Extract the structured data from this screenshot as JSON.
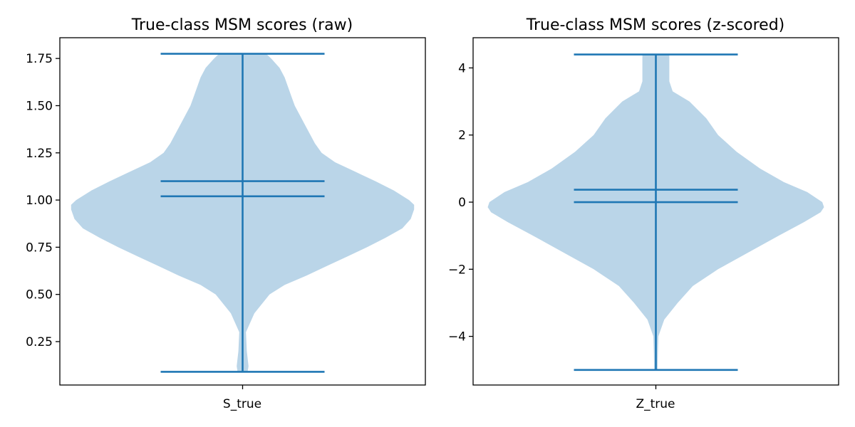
{
  "figure": {
    "background": "#ffffff",
    "violin_fill": "#bad5e8",
    "line_color": "#1f77b4"
  },
  "chart_data": [
    {
      "type": "violin",
      "title": "True-class MSM scores (raw)",
      "xlabel": "",
      "ylabel": "",
      "categories": [
        "S_true"
      ],
      "ylim": [
        0.02,
        1.86
      ],
      "yticks": [
        0.25,
        0.5,
        0.75,
        1.0,
        1.25,
        1.5,
        1.75
      ],
      "ytick_labels": [
        "0.25",
        "0.50",
        "0.75",
        "1.00",
        "1.25",
        "1.50",
        "1.75"
      ],
      "stats": {
        "min": 0.09,
        "max": 1.775,
        "mean": 1.1,
        "median": 1.02
      },
      "density_y": [
        0.09,
        0.12,
        0.2,
        0.3,
        0.4,
        0.5,
        0.55,
        0.6,
        0.65,
        0.7,
        0.75,
        0.8,
        0.85,
        0.9,
        0.95,
        0.975,
        1.0,
        1.05,
        1.1,
        1.15,
        1.2,
        1.25,
        1.3,
        1.4,
        1.5,
        1.55,
        1.6,
        1.65,
        1.7,
        1.75,
        1.775
      ],
      "density_width": [
        0.03,
        0.035,
        0.025,
        0.02,
        0.07,
        0.16,
        0.25,
        0.38,
        0.5,
        0.62,
        0.74,
        0.85,
        0.95,
        1.0,
        1.02,
        1.02,
        0.99,
        0.9,
        0.79,
        0.67,
        0.55,
        0.47,
        0.43,
        0.37,
        0.31,
        0.29,
        0.27,
        0.25,
        0.22,
        0.17,
        0.14
      ]
    },
    {
      "type": "violin",
      "title": "True-class MSM scores (z-scored)",
      "xlabel": "",
      "ylabel": "",
      "categories": [
        "Z_true"
      ],
      "ylim": [
        -5.45,
        4.9
      ],
      "yticks": [
        -4,
        -2,
        0,
        2,
        4
      ],
      "ytick_labels": [
        "−4",
        "−2",
        "0",
        "2",
        "4"
      ],
      "stats": {
        "min": -5.0,
        "max": 4.4,
        "mean": 0.37,
        "median": 0.0
      },
      "density_y": [
        -5.0,
        -4.5,
        -4.0,
        -3.5,
        -3.0,
        -2.5,
        -2.0,
        -1.5,
        -1.0,
        -0.6,
        -0.3,
        -0.15,
        0.0,
        0.3,
        0.6,
        1.0,
        1.5,
        2.0,
        2.5,
        3.0,
        3.3,
        3.6,
        4.0,
        4.4
      ],
      "density_width": [
        0.01,
        0.012,
        0.015,
        0.05,
        0.13,
        0.22,
        0.37,
        0.55,
        0.73,
        0.88,
        0.98,
        1.0,
        0.99,
        0.9,
        0.76,
        0.62,
        0.48,
        0.37,
        0.3,
        0.2,
        0.1,
        0.08,
        0.08,
        0.08
      ]
    }
  ]
}
